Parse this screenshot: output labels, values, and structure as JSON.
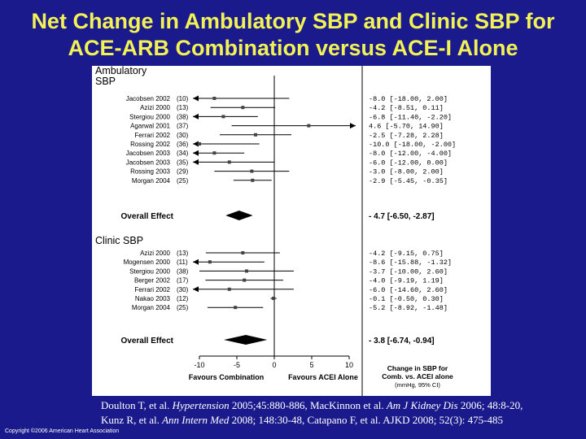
{
  "title_line1": "Net Change in Ambulatory SBP and Clinic SBP for",
  "title_line2": "ACE-ARB Combination versus ACE-I Alone",
  "citation": {
    "line1_a": "Doulton T, et al. ",
    "line1_b": "Hypertension",
    "line1_c": " 2005;45:880-886, MacKinnon et al. ",
    "line1_d": "Am J Kidney Dis",
    "line1_e": " 2006; 48:8-20,",
    "line2_a": "Kunz R, et al. ",
    "line2_b": "Ann Intern Med",
    "line2_c": " 2008; 148:30-48, Catapano F, et al. AJKD 2008; 52(3): 475-485"
  },
  "copyright": "Copyright ©2006 American Heart Association",
  "chart_data": {
    "type": "forest",
    "xlim": [
      -10,
      10
    ],
    "x_ticks": [
      -10,
      -5,
      0,
      5,
      10
    ],
    "x_tick_labels": [
      "-10",
      "-5",
      "0",
      "5",
      "10"
    ],
    "favours_left": "Favours Combination",
    "favours_right": "Favours ACEI Alone",
    "column_header": [
      "Change in SBP for",
      "Comb. vs. ACEI alone",
      "(mmHg, 95% CI)"
    ],
    "overall_label": "Overall Effect",
    "groups": [
      {
        "name_lines": [
          "Ambulatory",
          "SBP"
        ],
        "studies": [
          {
            "name": "Jacobsen 2002",
            "n": "(10)",
            "est": -8.0,
            "lo": -18.0,
            "hi": 2.0,
            "text": "-8.0  [-18.00, 2.00]"
          },
          {
            "name": "Azizi 2000",
            "n": "(13)",
            "est": -4.2,
            "lo": -8.51,
            "hi": 0.11,
            "text": "-4.2  [-8.51, 0.11]"
          },
          {
            "name": "Stergiou 2000",
            "n": "(38)",
            "est": -6.8,
            "lo": -11.4,
            "hi": -2.2,
            "text": "-6.8  [-11.40, -2.20]"
          },
          {
            "name": "Agarwal 2001",
            "n": "(37)",
            "est": 4.6,
            "lo": -5.7,
            "hi": 14.9,
            "text": "4.6  [-5.70, 14.90]"
          },
          {
            "name": "Ferrari 2002",
            "n": "(30)",
            "est": -2.5,
            "lo": -7.28,
            "hi": 2.28,
            "text": "-2.5  [-7.28, 2.28]"
          },
          {
            "name": "Rossing 2002",
            "n": "(36)",
            "est": -10.0,
            "lo": -18.0,
            "hi": -2.0,
            "text": "-10.0  [-18.00, -2.00]"
          },
          {
            "name": "Jacobsen 2003",
            "n": "(34)",
            "est": -8.0,
            "lo": -12.0,
            "hi": -4.0,
            "text": "-8.0  [-12.00, -4.00]"
          },
          {
            "name": "Jacobsen 2003",
            "n": "(35)",
            "est": -6.0,
            "lo": -12.0,
            "hi": 0.0,
            "text": "-6.0  [-12.00, 0.00]"
          },
          {
            "name": "Rossing 2003",
            "n": "(29)",
            "est": -3.0,
            "lo": -8.0,
            "hi": 2.0,
            "text": "-3.0  [-8.00, 2.00]"
          },
          {
            "name": "Morgan 2004",
            "n": "(25)",
            "est": -2.9,
            "lo": -5.45,
            "hi": -0.35,
            "text": "-2.9  [-5.45, -0.35]"
          }
        ],
        "overall": {
          "est": -4.7,
          "lo": -6.5,
          "hi": -2.87,
          "text": "- 4.7 [-6.50, -2.87]"
        }
      },
      {
        "name_lines": [
          "Clinic SBP"
        ],
        "studies": [
          {
            "name": "Azizi 2000",
            "n": "(13)",
            "est": -4.2,
            "lo": -9.15,
            "hi": 0.75,
            "text": "-4.2  [-9.15, 0.75]"
          },
          {
            "name": "Mogensen 2000",
            "n": "(11)",
            "est": -8.6,
            "lo": -15.88,
            "hi": -1.32,
            "text": "-8.6  [-15.88, -1.32]"
          },
          {
            "name": "Stergiou 2000",
            "n": "(38)",
            "est": -3.7,
            "lo": -10.0,
            "hi": 2.6,
            "text": "-3.7  [-10.00, 2.60]"
          },
          {
            "name": "Berger 2002",
            "n": "(17)",
            "est": -4.0,
            "lo": -9.19,
            "hi": 1.19,
            "text": "-4.0  [-9.19, 1.19]"
          },
          {
            "name": "Ferrari 2002",
            "n": "(30)",
            "est": -6.0,
            "lo": -14.6,
            "hi": 2.6,
            "text": "-6.0  [-14.60, 2.60]"
          },
          {
            "name": "Nakao 2003",
            "n": "(12)",
            "est": -0.1,
            "lo": -0.5,
            "hi": 0.3,
            "text": "-0.1  [-0.50, 0.30]"
          },
          {
            "name": "Morgan 2004",
            "n": "(25)",
            "est": -5.2,
            "lo": -8.92,
            "hi": -1.48,
            "text": "-5.2  [-8.92, -1.48]"
          }
        ],
        "overall": {
          "est": -3.8,
          "lo": -6.74,
          "hi": -0.94,
          "text": "- 3.8 [-6.74, -0.94]"
        }
      }
    ]
  }
}
